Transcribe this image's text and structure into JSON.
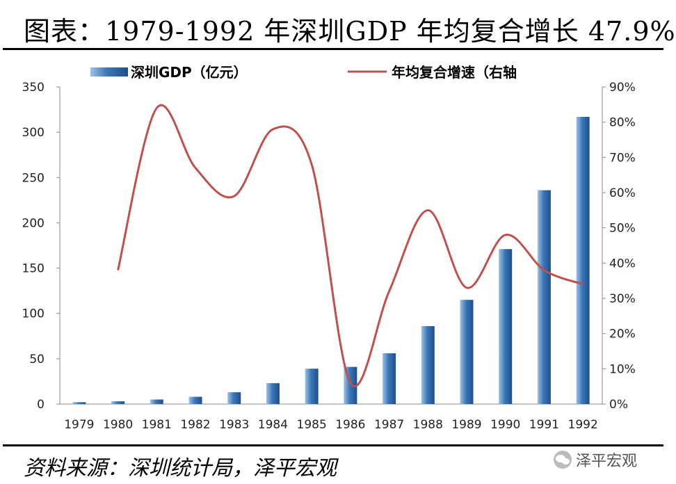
{
  "title": "图表：1979-1992 年深圳GDP 年均复合增长 47.9%",
  "source": "资料来源：深圳统计局，泽平宏观",
  "watermark": {
    "text": "泽平宏观",
    "icon": "wechat-icon"
  },
  "colors": {
    "bar": "#3a76b8",
    "line": "#c0504d"
  },
  "chart_data": {
    "type": "bar",
    "categories": [
      "1979",
      "1980",
      "1981",
      "1982",
      "1983",
      "1984",
      "1985",
      "1986",
      "1987",
      "1988",
      "1989",
      "1990",
      "1991",
      "1992"
    ],
    "series": [
      {
        "name": "深圳GDP（亿元）",
        "type": "bar",
        "axis": "left",
        "values": [
          2,
          3,
          5,
          8,
          13,
          23,
          39,
          41,
          56,
          86,
          115,
          171,
          236,
          317
        ]
      },
      {
        "name": "年均复合增速（右轴",
        "type": "line",
        "axis": "right",
        "values": [
          null,
          38,
          84,
          67,
          59,
          78,
          68,
          6,
          32,
          55,
          33,
          48,
          38,
          34
        ]
      }
    ],
    "ylim": [
      0,
      350
    ],
    "yticks": [
      "0",
      "50",
      "100",
      "150",
      "200",
      "250",
      "300",
      "350"
    ],
    "y2lim": [
      0,
      90
    ],
    "y2ticks": [
      "0%",
      "10%",
      "20%",
      "30%",
      "40%",
      "50%",
      "60%",
      "70%",
      "80%",
      "90%"
    ],
    "legend": "top"
  }
}
